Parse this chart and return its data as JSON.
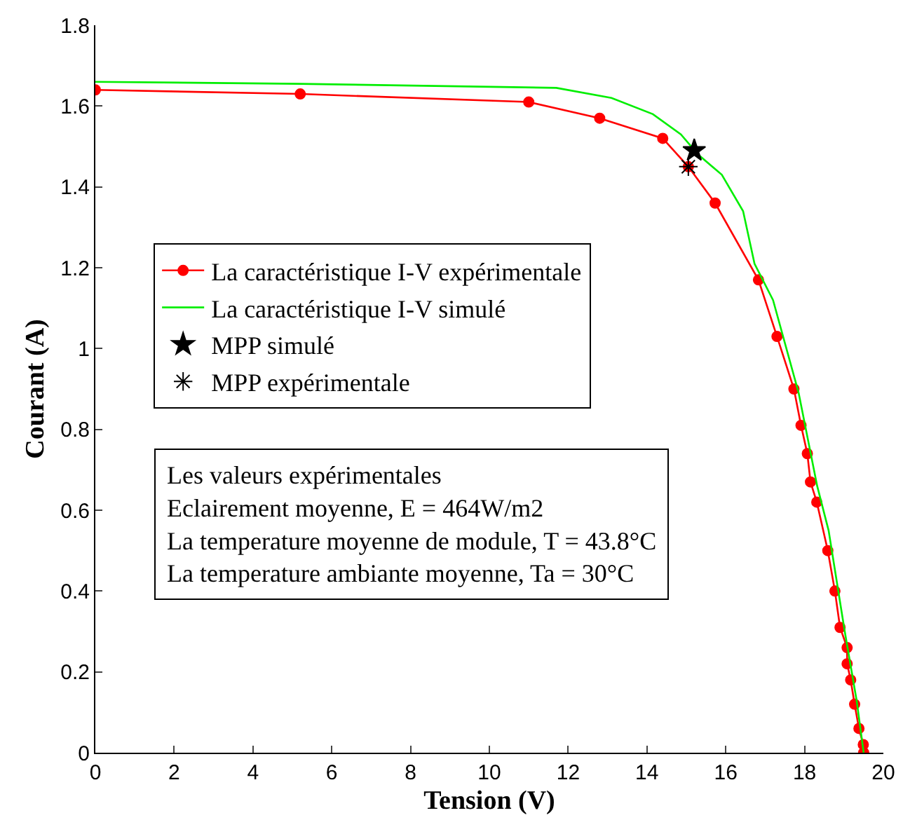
{
  "chart_data": {
    "type": "line",
    "xlabel": "Tension (V)",
    "ylabel": "Courant (A)",
    "xlim": [
      0,
      20
    ],
    "xticks": [
      0,
      2,
      4,
      6,
      8,
      10,
      12,
      14,
      16,
      18,
      20
    ],
    "ylim": [
      0,
      1.8
    ],
    "yticks": [
      0,
      0.2,
      0.4,
      0.6,
      0.8,
      1,
      1.2,
      1.4,
      1.6,
      1.8
    ],
    "grid": false,
    "legend": "left",
    "line_style": "solid",
    "series": [
      {
        "name": "La caractéristique I-V expérimentale",
        "color": "#ff0000",
        "marker": "circle",
        "x": [
          0,
          5.2,
          11,
          12.8,
          14.4,
          15.05,
          15.73,
          16.83,
          17.3,
          17.73,
          17.91,
          18.07,
          18.15,
          18.31,
          18.59,
          18.77,
          18.9,
          19.08,
          19.08,
          19.17,
          19.27,
          19.38,
          19.49,
          19.5
        ],
        "values": [
          1.64,
          1.63,
          1.61,
          1.57,
          1.52,
          1.45,
          1.36,
          1.17,
          1.03,
          0.9,
          0.81,
          0.74,
          0.67,
          0.62,
          0.5,
          0.4,
          0.31,
          0.26,
          0.22,
          0.18,
          0.12,
          0.06,
          0.02,
          0
        ]
      },
      {
        "name": "La caractéristique I-V simulé",
        "color": "#00ee00",
        "marker": "none",
        "x": [
          0,
          5.2,
          11.7,
          13.1,
          14.15,
          14.86,
          15.3,
          15.9,
          16.44,
          16.73,
          17.2,
          17.85,
          18.32,
          18.61,
          19.02,
          19.32,
          19.5
        ],
        "values": [
          1.66,
          1.655,
          1.645,
          1.62,
          1.58,
          1.53,
          1.48,
          1.43,
          1.34,
          1.21,
          1.12,
          0.89,
          0.66,
          0.55,
          0.3,
          0.13,
          0
        ]
      },
      {
        "name": "MPP simulé",
        "color": "#000000",
        "type": "scatter",
        "marker": "star",
        "x": [
          15.2
        ],
        "values": [
          1.49
        ]
      },
      {
        "name": "MPP expérimentale",
        "color": "#000000",
        "type": "scatter",
        "marker": "cross",
        "x": [
          15.05
        ],
        "values": [
          1.45
        ]
      }
    ],
    "annotations": [
      "Les valeurs expérimentales\nEclairement moyenne, E = 464W/m2\nLa temperature moyenne de module, T = 43.8°C\nLa temperature ambiante moyenne, Ta = 30°C"
    ]
  }
}
